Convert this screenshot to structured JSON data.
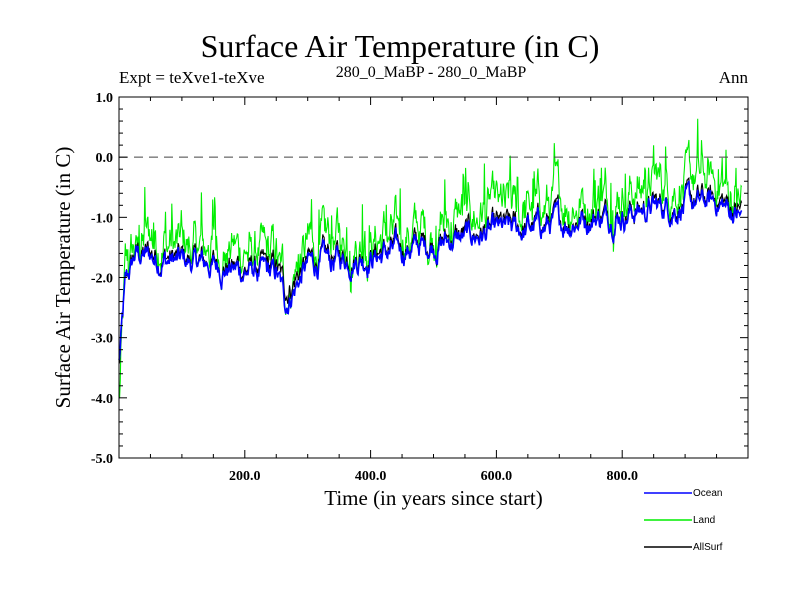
{
  "header": {
    "title": "Surface Air Temperature (in C)",
    "subtitle_left": "Expt = teXve1-teXve",
    "subtitle_center": "280_0_MaBP - 280_0_MaBP",
    "subtitle_right": "Ann"
  },
  "chart_data": {
    "type": "line",
    "title": "Surface Air Temperature (in C)",
    "xlabel": "Time (in years since start)",
    "ylabel": "Surface Air Temperature (in C)",
    "xlim": [
      0,
      1000
    ],
    "ylim": [
      -5.0,
      1.0
    ],
    "xticks": [
      200,
      400,
      600,
      800
    ],
    "xtick_labels": [
      "200.0",
      "400.0",
      "600.0",
      "800.0"
    ],
    "yticks": [
      -5,
      -4,
      -3,
      -2,
      -1,
      0,
      1
    ],
    "ytick_labels": [
      "-5.0",
      "-4.0",
      "-3.0",
      "-2.0",
      "-1.0",
      "0.0",
      "1.0"
    ],
    "reference_line": {
      "y": 0.0,
      "style": "dashed"
    },
    "legend_position": "bottom-right, outside plot",
    "series": [
      {
        "name": "Land",
        "color": "#00ee00",
        "x": [
          0,
          10,
          25,
          50,
          100,
          150,
          200,
          250,
          265,
          300,
          350,
          400,
          450,
          500,
          550,
          600,
          650,
          700,
          750,
          800,
          850,
          900,
          950,
          990
        ],
        "values": [
          -4.1,
          -2.0,
          -1.5,
          -1.3,
          -1.5,
          -1.5,
          -1.6,
          -1.7,
          -2.2,
          -1.5,
          -1.4,
          -1.4,
          -1.3,
          -1.2,
          -1.0,
          -0.9,
          -0.9,
          -0.8,
          -0.7,
          -0.6,
          -0.5,
          -0.4,
          -0.4,
          -0.8
        ]
      },
      {
        "name": "AllSurf",
        "color": "#000000",
        "x": [
          0,
          10,
          25,
          50,
          100,
          150,
          200,
          250,
          265,
          300,
          350,
          400,
          450,
          500,
          550,
          600,
          650,
          700,
          750,
          800,
          850,
          900,
          950,
          990
        ],
        "values": [
          -3.5,
          -2.2,
          -1.6,
          -1.6,
          -1.7,
          -1.75,
          -1.85,
          -1.85,
          -2.2,
          -1.75,
          -1.65,
          -1.6,
          -1.5,
          -1.4,
          -1.3,
          -1.2,
          -1.15,
          -1.05,
          -0.95,
          -0.9,
          -0.8,
          -0.75,
          -0.7,
          -0.9
        ]
      },
      {
        "name": "Ocean",
        "color": "#0000ff",
        "x": [
          0,
          10,
          25,
          50,
          100,
          150,
          200,
          250,
          265,
          300,
          350,
          400,
          450,
          500,
          550,
          600,
          650,
          700,
          750,
          800,
          850,
          900,
          950,
          990
        ],
        "values": [
          -3.4,
          -2.2,
          -1.65,
          -1.65,
          -1.75,
          -1.8,
          -1.9,
          -1.95,
          -2.4,
          -1.8,
          -1.7,
          -1.65,
          -1.55,
          -1.45,
          -1.35,
          -1.25,
          -1.2,
          -1.1,
          -1.0,
          -0.95,
          -0.85,
          -0.8,
          -0.75,
          -1.0
        ]
      }
    ]
  }
}
